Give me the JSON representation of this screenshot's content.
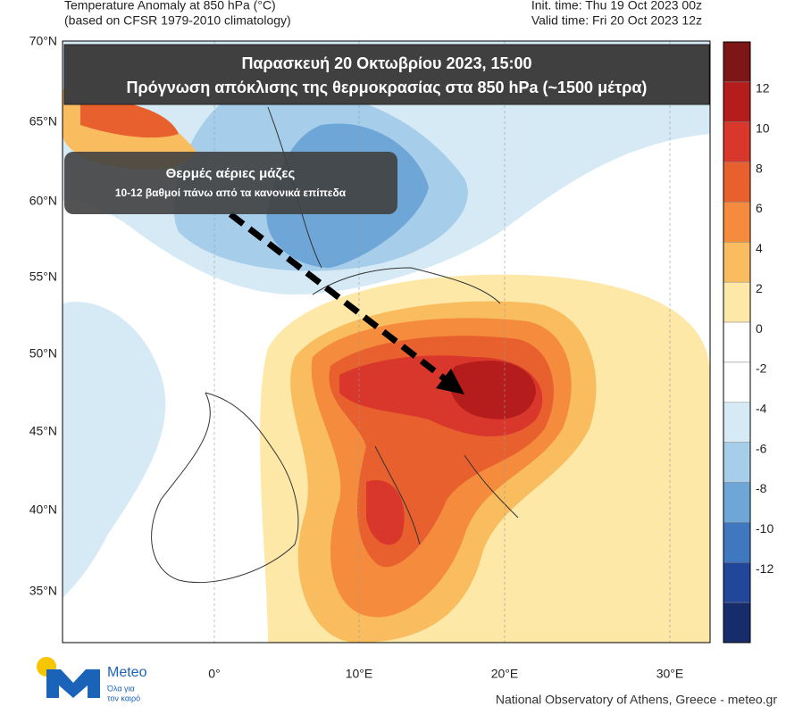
{
  "header": {
    "title": "Temperature Anomaly at 850 hPa (°C)",
    "subtitle": "(based on CFSR 1979-2010 climatology)",
    "init_time": "Init. time: Thu 19 Oct 2023 00z",
    "valid_time": "Valid time: Fri 20 Oct 2023 12z"
  },
  "banner": {
    "line1": "Παρασκευή  20 Οκτωβρίου  2023, 15:00",
    "line2": "Πρόγνωση  απόκλισης  της θερμοκρασίας  στα  850 hPa (~1500 μέτρα)"
  },
  "annotation": {
    "title": "Θερμές αέριες μάζες",
    "text": "10-12 βαθμοί πάνω από τα κανονικά επίπεδα"
  },
  "lat_labels": [
    "70°N",
    "65°N",
    "60°N",
    "55°N",
    "50°N",
    "45°N",
    "40°N",
    "35°N"
  ],
  "lon_labels": [
    "0°",
    "10°E",
    "20°E",
    "30°E"
  ],
  "colorbar": {
    "labels": [
      "12",
      "10",
      "8",
      "6",
      "4",
      "2",
      "0",
      "-2",
      "-4",
      "-6",
      "-8",
      "-10",
      "-12"
    ],
    "colors": [
      "#7d1616",
      "#b51c1c",
      "#d9372b",
      "#e8602e",
      "#f58b3c",
      "#f9bd5f",
      "#fde8a8",
      "#ffffff",
      "#ffffff",
      "#d6eaf6",
      "#a6cde9",
      "#6ea6d8",
      "#3f78bf",
      "#21469a",
      "#172c6b"
    ]
  },
  "logo": {
    "name": "Meteo",
    "tagline1": "Όλα για",
    "tagline2": "τον καιρό"
  },
  "footer": "National Observatory of Athens, Greece - meteo.gr"
}
